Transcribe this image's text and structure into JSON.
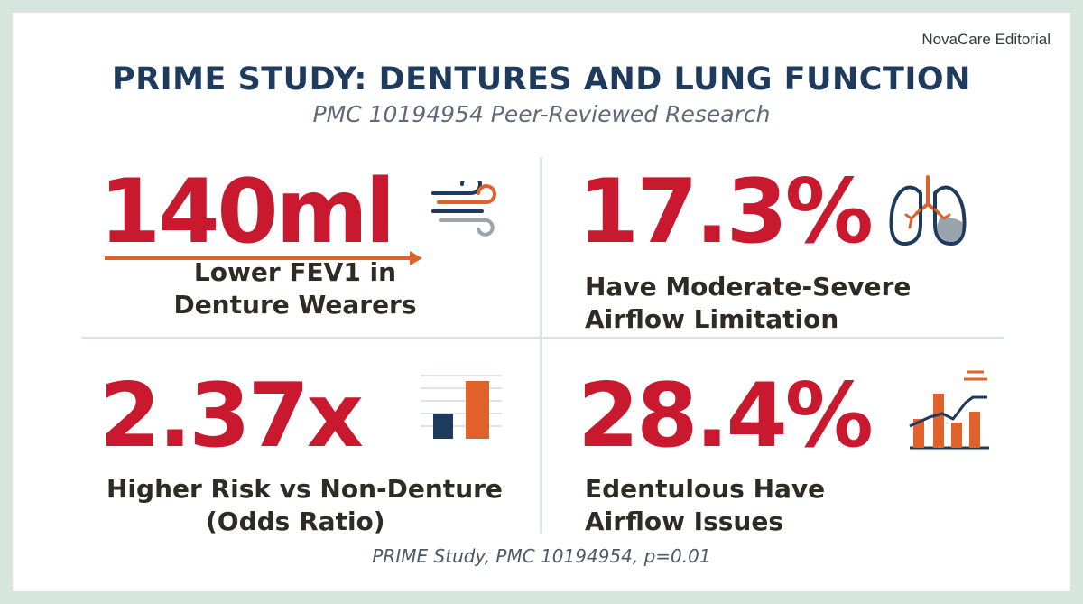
{
  "brand": "NovaCare Editorial",
  "title": "PRIME STUDY: DENTURES AND LUNG FUNCTION",
  "subtitle": "PMC 10194954 Peer-Reviewed Research",
  "stats": [
    {
      "value": "140ml",
      "label_line1": "Lower FEV1 in",
      "label_line2": "Denture Wearers",
      "icon": "airflow-icon"
    },
    {
      "value": "17.3%",
      "label_line1": "Have Moderate-Severe",
      "label_line2": "Airflow Limitation",
      "icon": "lungs-icon"
    },
    {
      "value": "2.37x",
      "label_line1": "Higher Risk vs Non-Denture",
      "label_line2": "(Odds Ratio)",
      "icon": "bar-comparison-icon"
    },
    {
      "value": "28.4%",
      "label_line1": "Edentulous Have",
      "label_line2": "Airflow Issues",
      "icon": "trend-chart-icon"
    }
  ],
  "source": "PRIME Study, PMC 10194954, p=0.01",
  "colors": {
    "accent_red": "#c8192f",
    "navy": "#1e3a5c",
    "orange": "#e0622a",
    "background": "#d6e6df"
  }
}
